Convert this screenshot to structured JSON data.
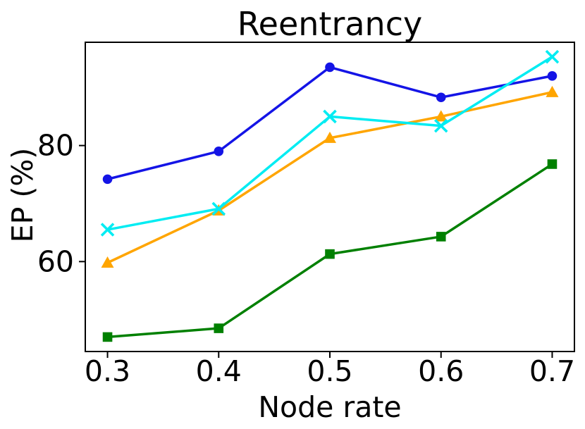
{
  "figure": {
    "background": "#ffffff",
    "text_color": "#000000",
    "axis_color": "#000000"
  },
  "chart_data": {
    "type": "line",
    "title": "Reentrancy",
    "xlabel": "Node rate",
    "ylabel": "EP (%)",
    "x": [
      0.3,
      0.4,
      0.5,
      0.6,
      0.7
    ],
    "xticks": [
      "0.3",
      "0.4",
      "0.5",
      "0.6",
      "0.7"
    ],
    "yticks": [
      "60",
      "80"
    ],
    "xlim": [
      0.28,
      0.72
    ],
    "ylim": [
      44.5,
      97.8
    ],
    "grid": false,
    "legend": "none",
    "series": [
      {
        "name": "blue-circle",
        "marker": "circle",
        "color": "#1414e6",
        "values": [
          74.2,
          79.0,
          93.5,
          88.3,
          92.0
        ]
      },
      {
        "name": "orange-triangle",
        "marker": "triangle",
        "color": "#ffa500",
        "values": [
          59.8,
          68.8,
          81.3,
          85.0,
          89.2
        ]
      },
      {
        "name": "green-square",
        "marker": "square",
        "color": "#008000",
        "values": [
          47.0,
          48.5,
          61.3,
          64.3,
          76.8
        ]
      },
      {
        "name": "cyan-x",
        "marker": "x",
        "color": "#00ecf2",
        "values": [
          65.5,
          69.1,
          85.0,
          83.4,
          95.3
        ]
      }
    ]
  }
}
